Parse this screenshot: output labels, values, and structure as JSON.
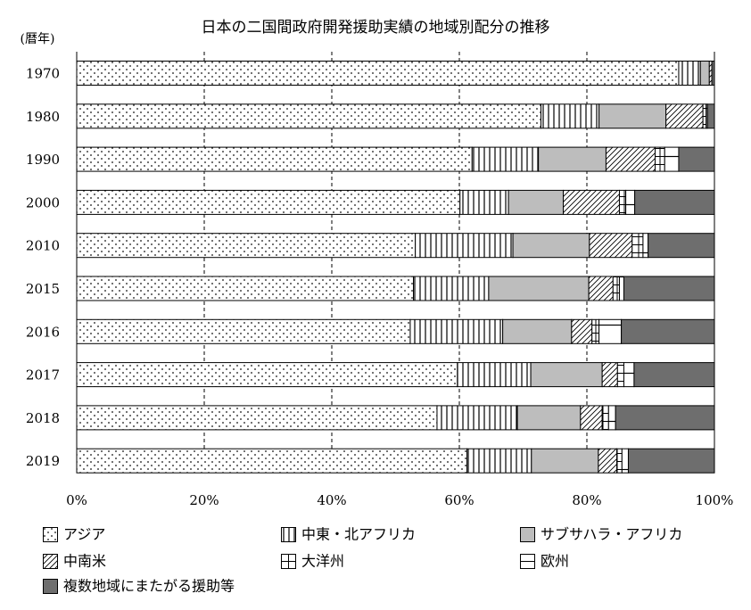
{
  "chart_data": {
    "type": "bar",
    "orientation": "horizontal",
    "stacked": true,
    "title": "日本の二国間政府開発援助実績の地域別配分の推移",
    "ylabel": "(暦年)",
    "categories": [
      "1970",
      "1980",
      "1990",
      "2000",
      "2010",
      "2015",
      "2016",
      "2017",
      "2018",
      "2019"
    ],
    "xlim": [
      0,
      100
    ],
    "x_ticks": [
      "0%",
      "20%",
      "40%",
      "60%",
      "80%",
      "100%"
    ],
    "grid": "vertical dashed",
    "legend_position": "bottom",
    "series": [
      {
        "name": "アジア",
        "pattern": "dots",
        "values": [
          94.4,
          72.8,
          62.0,
          60.1,
          53.1,
          52.8,
          52.3,
          59.7,
          56.5,
          61.2
        ]
      },
      {
        "name": "中東・北アフリカ",
        "pattern": "vertical-lines",
        "values": [
          3.4,
          9.1,
          10.4,
          7.6,
          15.3,
          11.8,
          14.5,
          11.5,
          12.6,
          10.1
        ]
      },
      {
        "name": "サブサハラ・アフリカ",
        "pattern": "gray",
        "values": [
          1.4,
          10.5,
          10.6,
          8.6,
          12.0,
          15.7,
          10.8,
          11.2,
          9.9,
          10.5
        ]
      },
      {
        "name": "中南米",
        "pattern": "diagonal",
        "values": [
          0.4,
          5.8,
          7.7,
          8.8,
          6.7,
          3.8,
          3.2,
          2.4,
          3.4,
          2.9
        ]
      },
      {
        "name": "大洋州",
        "pattern": "grid",
        "values": [
          0.0,
          0.5,
          1.5,
          1.0,
          1.7,
          1.0,
          1.1,
          1.0,
          1.0,
          0.8
        ]
      },
      {
        "name": "欧州",
        "pattern": "horizontal-line",
        "values": [
          0.0,
          0.2,
          2.2,
          1.4,
          0.8,
          0.7,
          3.5,
          1.6,
          1.1,
          1.0
        ]
      },
      {
        "name": "複数地域にまたがる援助等",
        "pattern": "dark-gray",
        "values": [
          0.4,
          1.1,
          5.6,
          12.5,
          10.4,
          14.2,
          14.6,
          12.6,
          15.5,
          13.5
        ]
      }
    ]
  }
}
